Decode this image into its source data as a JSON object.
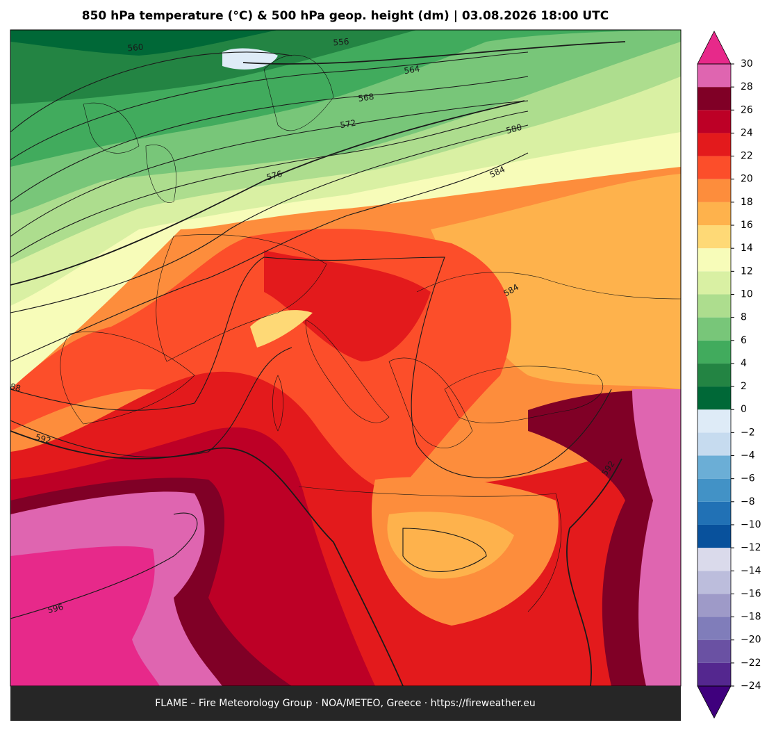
{
  "title": "850 hPa temperature (°C) & 500 hPa geop. height (dm)  |  03.08.2026 18:00 UTC",
  "footer": "FLAME – Fire Meteorology Group · NOA/METEO, Greece · https://fireweather.eu",
  "contour_labels": [
    560,
    556,
    564,
    568,
    572,
    576,
    580,
    584,
    584,
    88,
    592,
    592,
    596
  ],
  "colorbar": {
    "lim": [
      -24,
      30
    ],
    "ticks": [
      {
        "value": -24,
        "label": "−24"
      },
      {
        "value": -22,
        "label": "−22"
      },
      {
        "value": -20,
        "label": "−20"
      },
      {
        "value": -18,
        "label": "−18"
      },
      {
        "value": -16,
        "label": "−16"
      },
      {
        "value": -14,
        "label": "−14"
      },
      {
        "value": -12,
        "label": "−12"
      },
      {
        "value": -10,
        "label": "−10"
      },
      {
        "value": -8,
        "label": "−8"
      },
      {
        "value": -6,
        "label": "−6"
      },
      {
        "value": -4,
        "label": "−4"
      },
      {
        "value": -2,
        "label": "−2"
      },
      0,
      2,
      4,
      6,
      8,
      10,
      12,
      14,
      16,
      18,
      20,
      22,
      24,
      26,
      28,
      30
    ],
    "colors": [
      "#54278f",
      "#6a51a3",
      "#807dba",
      "#9e9ac8",
      "#bcbddc",
      "#dadaeb",
      "#08519c",
      "#2171b5",
      "#4292c6",
      "#6baed6",
      "#c6dbef",
      "#deebf7",
      "#006837",
      "#238443",
      "#41ab5d",
      "#78c679",
      "#addd8e",
      "#d9f0a3",
      "#f7fcb9",
      "#fed976",
      "#feb24c",
      "#fd8d3c",
      "#fc4e2a",
      "#e31a1c",
      "#bd0026",
      "#800026",
      "#df65b0"
    ],
    "under_color": "#3f007d",
    "over_color": "#e7298a"
  }
}
